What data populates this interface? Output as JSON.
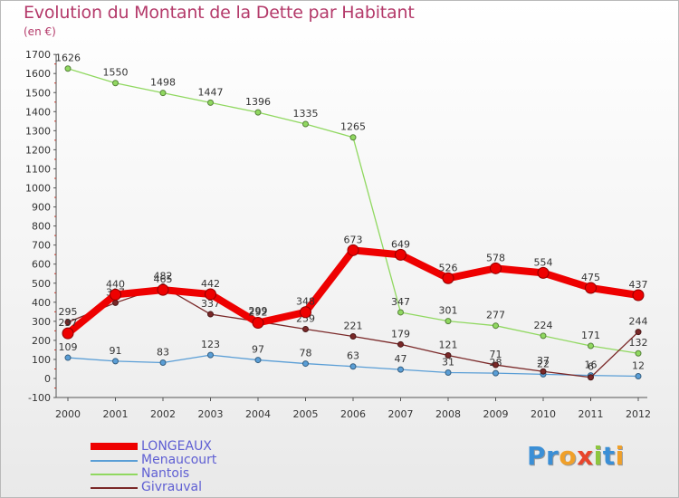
{
  "title": "Evolution du Montant de la Dette par Habitant",
  "subtitle": "(en €)",
  "logo": {
    "text": "Proxiti",
    "letters": [
      {
        "ch": "P",
        "color": "#3b8fd6"
      },
      {
        "ch": "r",
        "color": "#3b8fd6"
      },
      {
        "ch": "o",
        "color": "#f0a02a"
      },
      {
        "ch": "x",
        "color": "#e8452c"
      },
      {
        "ch": "i",
        "color": "#8dc63f"
      },
      {
        "ch": "t",
        "color": "#3b8fd6"
      },
      {
        "ch": "i",
        "color": "#f0a02a"
      }
    ]
  },
  "chart_data": {
    "type": "line",
    "title": "Evolution du Montant de la Dette par Habitant",
    "ylabel": "(en €)",
    "x": [
      "2000",
      "2001",
      "2002",
      "2003",
      "2004",
      "2005",
      "2006",
      "2007",
      "2008",
      "2009",
      "2010",
      "2011",
      "2012"
    ],
    "ylim": [
      -100,
      1700
    ],
    "yticks": [
      -100,
      0,
      100,
      200,
      300,
      400,
      500,
      600,
      700,
      800,
      900,
      1000,
      1100,
      1200,
      1300,
      1400,
      1500,
      1600,
      1700
    ],
    "grid": false,
    "legend_position": "bottom-left",
    "series": [
      {
        "name": "Nantois",
        "color": "#90d860",
        "values": [
          1626,
          1550,
          1498,
          1447,
          1396,
          1335,
          1265,
          347,
          301,
          277,
          224,
          171,
          132
        ]
      },
      {
        "name": "Menaucourt",
        "color": "#5a9ed6",
        "values": [
          109,
          91,
          83,
          123,
          97,
          78,
          63,
          47,
          31,
          28,
          22,
          16,
          12
        ]
      },
      {
        "name": "Givrauval",
        "color": "#7a2828",
        "values": [
          295,
          397,
          482,
          337,
          299,
          259,
          221,
          179,
          121,
          71,
          37,
          6,
          244
        ]
      },
      {
        "name": "LONGEAUX",
        "color": "#ee0000",
        "values": [
          237,
          440,
          465,
          442,
          292,
          348,
          673,
          649,
          526,
          578,
          554,
          475,
          437
        ]
      }
    ]
  },
  "legend": [
    {
      "name": "LONGEAUX",
      "color": "#ee0000"
    },
    {
      "name": "Menaucourt",
      "color": "#5a9ed6"
    },
    {
      "name": "Nantois",
      "color": "#90d860"
    },
    {
      "name": "Givrauval",
      "color": "#7a2828"
    }
  ]
}
